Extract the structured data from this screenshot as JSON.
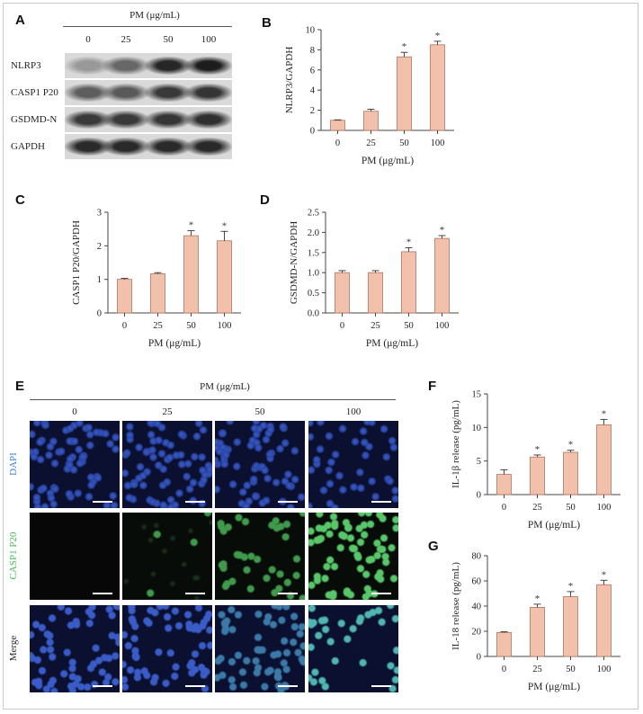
{
  "panels": {
    "A": "A",
    "B": "B",
    "C": "C",
    "D": "D",
    "E": "E",
    "F": "F",
    "G": "G"
  },
  "western_blot": {
    "header": "PM (μg/mL)",
    "doses": [
      "0",
      "25",
      "50",
      "100"
    ],
    "rows": [
      {
        "label": "NLRP3",
        "intensity": [
          0.28,
          0.55,
          0.9,
          0.95
        ]
      },
      {
        "label": "CASP1 P20",
        "intensity": [
          0.6,
          0.62,
          0.8,
          0.82
        ]
      },
      {
        "label": "GSDMD-N",
        "intensity": [
          0.8,
          0.8,
          0.82,
          0.85
        ]
      },
      {
        "label": "GAPDH",
        "intensity": [
          0.88,
          0.88,
          0.88,
          0.88
        ]
      }
    ]
  },
  "microscopy": {
    "header": "PM (μg/mL)",
    "doses": [
      "0",
      "25",
      "50",
      "100"
    ],
    "rows": [
      {
        "label": "DAPI",
        "color": "#3a7fd5"
      },
      {
        "label": "CASP1 P20",
        "color": "#3fbf4f"
      },
      {
        "label": "Merge",
        "color": "#222222"
      }
    ]
  },
  "chart_data": [
    {
      "panel": "B",
      "type": "bar",
      "categories": [
        "0",
        "25",
        "50",
        "100"
      ],
      "values": [
        1.0,
        1.9,
        7.3,
        8.5
      ],
      "errors": [
        0.05,
        0.2,
        0.45,
        0.35
      ],
      "significant": [
        "",
        "",
        "*",
        "*"
      ],
      "xlabel": "PM (μg/mL)",
      "ylabel": "NLRP3/GAPDH",
      "ylim": [
        0,
        10
      ],
      "yticks": [
        "0",
        "2",
        "4",
        "6",
        "8",
        "10"
      ]
    },
    {
      "panel": "C",
      "type": "bar",
      "categories": [
        "0",
        "25",
        "50",
        "100"
      ],
      "values": [
        1.0,
        1.17,
        2.3,
        2.15
      ],
      "errors": [
        0.03,
        0.03,
        0.15,
        0.28
      ],
      "significant": [
        "",
        "",
        "*",
        "*"
      ],
      "xlabel": "PM (μg/mL)",
      "ylabel": "CASP1 P20/GAPDH",
      "ylim": [
        0,
        3
      ],
      "yticks": [
        "0",
        "1",
        "2",
        "3"
      ]
    },
    {
      "panel": "D",
      "type": "bar",
      "categories": [
        "0",
        "25",
        "50",
        "100"
      ],
      "values": [
        1.0,
        1.0,
        1.52,
        1.85
      ],
      "errors": [
        0.05,
        0.05,
        0.1,
        0.07
      ],
      "significant": [
        "",
        "",
        "*",
        "*"
      ],
      "xlabel": "PM (μg/mL)",
      "ylabel": "GSDMD-N/GAPDH",
      "ylim": [
        0,
        2.5
      ],
      "yticks": [
        "0.0",
        "0.5",
        "1.0",
        "1.5",
        "2.0",
        "2.5"
      ]
    },
    {
      "panel": "F",
      "type": "bar",
      "categories": [
        "0",
        "25",
        "50",
        "100"
      ],
      "values": [
        3.0,
        5.6,
        6.3,
        10.4
      ],
      "errors": [
        0.7,
        0.3,
        0.3,
        0.8
      ],
      "significant": [
        "",
        "*",
        "*",
        "*"
      ],
      "xlabel": "PM (μg/mL)",
      "ylabel": "IL-1β release (pg/mL)",
      "ylim": [
        0,
        15
      ],
      "yticks": [
        "0",
        "5",
        "10",
        "15"
      ]
    },
    {
      "panel": "G",
      "type": "bar",
      "categories": [
        "0",
        "25",
        "50",
        "100"
      ],
      "values": [
        19,
        39,
        47.5,
        57
      ],
      "errors": [
        0.6,
        2.5,
        4.0,
        3.5
      ],
      "significant": [
        "",
        "*",
        "*",
        "*"
      ],
      "xlabel": "PM (μg/mL)",
      "ylabel": "IL-18 release (pg/mL)",
      "ylim": [
        0,
        80
      ],
      "yticks": [
        "0",
        "20",
        "40",
        "60",
        "80"
      ]
    }
  ],
  "colors": {
    "bar_fill": "#f2c1ab",
    "bar_stroke": "#b0735e",
    "axis": "#444444"
  }
}
